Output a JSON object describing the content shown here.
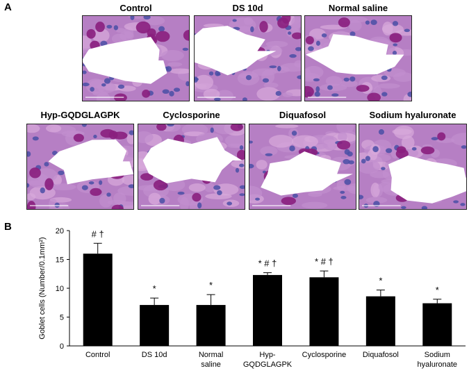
{
  "panel_a": {
    "label": "A",
    "images": [
      {
        "title": "Control"
      },
      {
        "title": "DS 10d"
      },
      {
        "title": "Normal saline"
      },
      {
        "title": "Hyp-GQDGLAGPK"
      },
      {
        "title": "Cyclosporine"
      },
      {
        "title": "Diquafosol"
      },
      {
        "title": "Sodium hyaluronate"
      }
    ],
    "colors": {
      "tissue": "#b67fc4",
      "goblet": "#8a1f7e",
      "nuclei": "#4a4fa6",
      "lumen": "#ffffff"
    }
  },
  "panel_b": {
    "label": "B"
  },
  "chart_data": {
    "type": "bar",
    "title": "",
    "xlabel": "",
    "ylabel": "Goblet cells (Number/0.1mm²)",
    "ylim": [
      0,
      20
    ],
    "yticks": [
      "0",
      "5",
      "10",
      "15",
      "20"
    ],
    "grid": false,
    "bar_color": "#000000",
    "categories": [
      [
        "Control"
      ],
      [
        "DS 10d"
      ],
      [
        "Normal",
        "saline"
      ],
      [
        "Hyp-",
        "GQDGLAGPK"
      ],
      [
        "Cyclosporine"
      ],
      [
        "Diquafosol"
      ],
      [
        "Sodium",
        "hyaluronate"
      ]
    ],
    "values": [
      16.0,
      7.1,
      7.1,
      12.3,
      11.9,
      8.6,
      7.4
    ],
    "errors": [
      1.8,
      1.2,
      1.8,
      0.4,
      1.1,
      1.1,
      0.7
    ],
    "annotations": [
      "# †",
      "*",
      "*",
      "* # †",
      "* # †",
      "*",
      "*"
    ]
  }
}
